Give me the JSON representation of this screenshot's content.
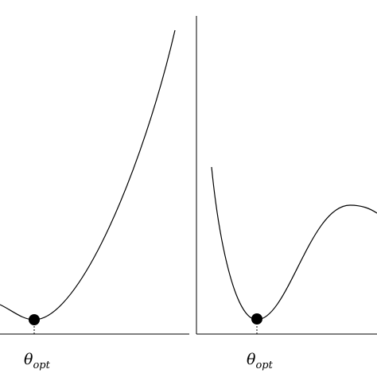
{
  "panels": [
    {
      "label": {
        "symbol": "θ",
        "subscript": "opt"
      }
    },
    {
      "label": {
        "symbol": "θ",
        "subscript": "opt"
      }
    }
  ]
}
